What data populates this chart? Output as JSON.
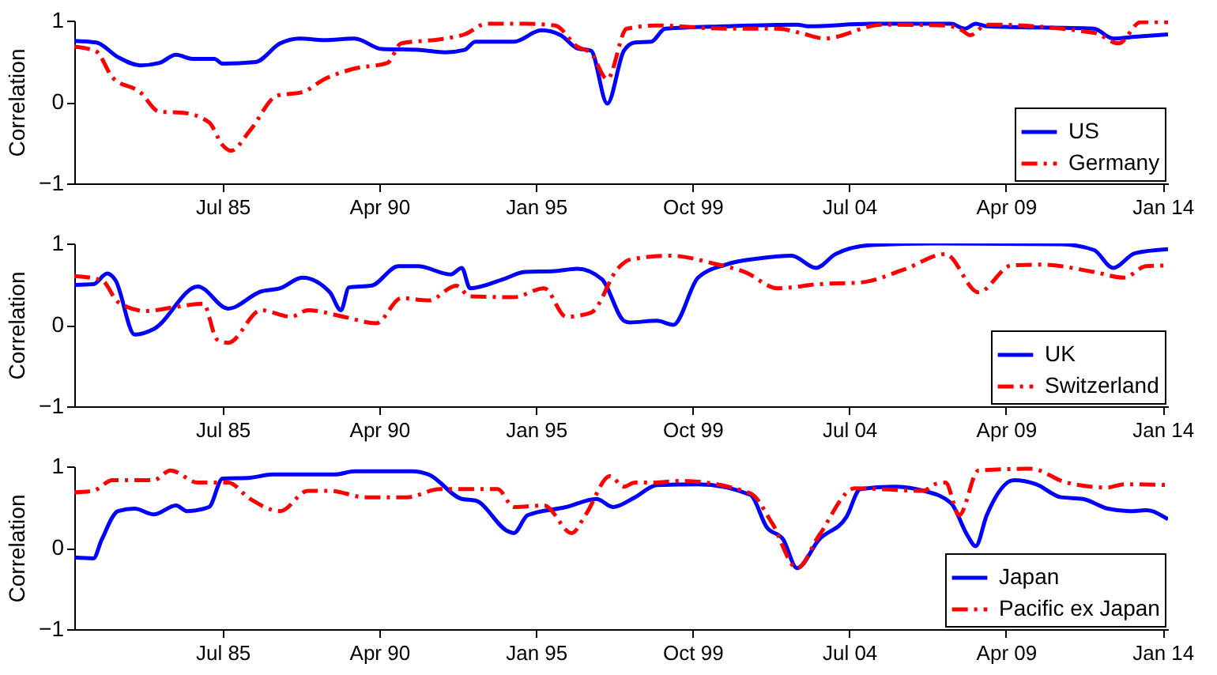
{
  "chart_data": [
    {
      "type": "line",
      "ylabel": "Correlation",
      "xlim": [
        "1981-01",
        "2014-03"
      ],
      "xticks": [
        {
          "value": "1985-07",
          "label": "Jul 85"
        },
        {
          "value": "1990-04",
          "label": "Apr 90"
        },
        {
          "value": "1995-01",
          "label": "Jan 95"
        },
        {
          "value": "1999-10",
          "label": "Oct 99"
        },
        {
          "value": "2004-07",
          "label": "Jul 04"
        },
        {
          "value": "2009-04",
          "label": "Apr 09"
        },
        {
          "value": "2014-01",
          "label": "Jan 14"
        }
      ],
      "ylim": [
        -1,
        1
      ],
      "yticks": [
        -1,
        0,
        1
      ],
      "legend": "bottom right",
      "grid": false,
      "series": [
        {
          "name": "US",
          "color": "#0000ff",
          "line_style": "solid",
          "x": [
            "1981-01",
            "1981-09",
            "1982-05",
            "1983-01",
            "1983-08",
            "1984-02",
            "1984-08",
            "1985-04",
            "1985-07",
            "1986-07",
            "1987-04",
            "1987-11",
            "1988-08",
            "1989-07",
            "1990-05",
            "1991-06",
            "1992-04",
            "1992-11",
            "1993-03",
            "1994-05",
            "1995-03",
            "1995-10",
            "1996-04",
            "1996-09",
            "1997-03",
            "1997-09",
            "1998-01",
            "1998-07",
            "1998-12",
            "2000-10",
            "2002-12",
            "2003-04",
            "2005-03",
            "2007-08",
            "2008-01",
            "2008-05",
            "2008-09",
            "2011-12",
            "2012-07",
            "2013-03",
            "2014-03"
          ],
          "values": [
            0.75,
            0.73,
            0.55,
            0.45,
            0.48,
            0.58,
            0.53,
            0.53,
            0.47,
            0.49,
            0.72,
            0.78,
            0.76,
            0.78,
            0.65,
            0.64,
            0.61,
            0.64,
            0.74,
            0.74,
            0.88,
            0.82,
            0.66,
            0.63,
            -0.02,
            0.63,
            0.73,
            0.74,
            0.9,
            0.93,
            0.95,
            0.93,
            0.96,
            0.96,
            0.9,
            0.96,
            0.93,
            0.9,
            0.78,
            0.8,
            0.83
          ]
        },
        {
          "name": "Germany",
          "color": "#ff0000",
          "line_style": "dashed",
          "x": [
            "1981-01",
            "1981-09",
            "1982-03",
            "1983-01",
            "1983-08",
            "1984-04",
            "1985-02",
            "1985-07",
            "1985-10",
            "1986-05",
            "1987-03",
            "1987-12",
            "1988-08",
            "1989-07",
            "1990-07",
            "1990-12",
            "1992-02",
            "1992-11",
            "1993-07",
            "1994-09",
            "1995-08",
            "1996-04",
            "1996-09",
            "1997-03",
            "1997-10",
            "1998-09",
            "2000-10",
            "2002-05",
            "2003-02",
            "2003-10",
            "2005-07",
            "2007-06",
            "2007-12",
            "2008-03",
            "2008-09",
            "2011-12",
            "2012-09",
            "2013-05",
            "2014-03"
          ],
          "values": [
            0.68,
            0.62,
            0.3,
            0.12,
            -0.12,
            -0.13,
            -0.25,
            -0.53,
            -0.6,
            -0.35,
            0.08,
            0.12,
            0.28,
            0.41,
            0.48,
            0.72,
            0.77,
            0.83,
            0.96,
            0.96,
            0.94,
            0.68,
            0.6,
            0.28,
            0.9,
            0.94,
            0.9,
            0.9,
            0.84,
            0.78,
            0.95,
            0.94,
            0.88,
            0.82,
            0.95,
            0.85,
            0.72,
            0.98,
            0.98
          ]
        }
      ]
    },
    {
      "type": "line",
      "ylabel": "Correlation",
      "xlim": [
        "1981-01",
        "2014-03"
      ],
      "xticks": [
        {
          "value": "1985-07",
          "label": "Jul 85"
        },
        {
          "value": "1990-04",
          "label": "Apr 90"
        },
        {
          "value": "1995-01",
          "label": "Jan 95"
        },
        {
          "value": "1999-10",
          "label": "Oct 99"
        },
        {
          "value": "2004-07",
          "label": "Jul 04"
        },
        {
          "value": "2009-04",
          "label": "Apr 09"
        },
        {
          "value": "2014-01",
          "label": "Jan 14"
        }
      ],
      "ylim": [
        -1,
        1
      ],
      "yticks": [
        -1,
        0,
        1
      ],
      "legend": "bottom right",
      "grid": false,
      "series": [
        {
          "name": "UK",
          "color": "#0000ff",
          "line_style": "solid",
          "x": [
            "1981-01",
            "1981-08",
            "1982-01",
            "1982-04",
            "1982-11",
            "1983-06",
            "1984-10",
            "1985-09",
            "1986-09",
            "1987-04",
            "1987-12",
            "1988-10",
            "1989-02",
            "1989-05",
            "1990-01",
            "1990-11",
            "1991-06",
            "1992-06",
            "1992-10",
            "1993-01",
            "1994-01",
            "1994-09",
            "1995-08",
            "1996-04",
            "1997-01",
            "1997-09",
            "1997-11",
            "1998-09",
            "1999-03",
            "1999-12",
            "2000-10",
            "2001-11",
            "2002-10",
            "2003-07",
            "2004-02",
            "2005-03",
            "2007-02",
            "2010-12",
            "2011-12",
            "2012-07",
            "2013-03",
            "2014-03"
          ],
          "values": [
            0.49,
            0.5,
            0.63,
            0.55,
            -0.12,
            -0.05,
            0.47,
            0.2,
            0.41,
            0.45,
            0.58,
            0.4,
            0.18,
            0.46,
            0.48,
            0.72,
            0.72,
            0.62,
            0.7,
            0.45,
            0.56,
            0.65,
            0.66,
            0.69,
            0.56,
            0.05,
            0.03,
            0.05,
            0.0,
            0.58,
            0.74,
            0.82,
            0.85,
            0.7,
            0.87,
            0.98,
            1.0,
            0.99,
            0.92,
            0.7,
            0.88,
            0.93
          ]
        },
        {
          "name": "Switzerland",
          "color": "#ff0000",
          "line_style": "dashed",
          "x": [
            "1981-01",
            "1981-11",
            "1982-05",
            "1983-03",
            "1984-02",
            "1984-12",
            "1985-05",
            "1985-09",
            "1986-09",
            "1987-08",
            "1988-02",
            "1989-03",
            "1990-03",
            "1990-12",
            "1991-10",
            "1992-08",
            "1993-01",
            "1994-05",
            "1995-04",
            "1995-12",
            "1996-09",
            "1997-07",
            "1997-11",
            "1999-02",
            "2000-06",
            "2001-05",
            "2002-05",
            "2003-08",
            "2004-11",
            "2006-03",
            "2007-06",
            "2008-06",
            "2009-06",
            "2010-05",
            "2011-12",
            "2012-11",
            "2013-07",
            "2014-03"
          ],
          "values": [
            0.6,
            0.55,
            0.28,
            0.17,
            0.22,
            0.26,
            -0.18,
            -0.22,
            0.18,
            0.1,
            0.18,
            0.1,
            0.02,
            0.33,
            0.3,
            0.48,
            0.35,
            0.34,
            0.45,
            0.1,
            0.15,
            0.7,
            0.8,
            0.85,
            0.75,
            0.65,
            0.45,
            0.5,
            0.52,
            0.68,
            0.87,
            0.4,
            0.73,
            0.74,
            0.65,
            0.58,
            0.72,
            0.73
          ]
        }
      ]
    },
    {
      "type": "line",
      "ylabel": "Correlation",
      "xlim": [
        "1981-01",
        "2014-03"
      ],
      "xticks": [
        {
          "value": "1985-07",
          "label": "Jul 85"
        },
        {
          "value": "1990-04",
          "label": "Apr 90"
        },
        {
          "value": "1995-01",
          "label": "Jan 95"
        },
        {
          "value": "1999-10",
          "label": "Oct 99"
        },
        {
          "value": "2004-07",
          "label": "Jul 04"
        },
        {
          "value": "2009-04",
          "label": "Apr 09"
        },
        {
          "value": "2014-01",
          "label": "Jan 14"
        }
      ],
      "ylim": [
        -1,
        1
      ],
      "yticks": [
        -1,
        0,
        1
      ],
      "legend": "bottom right",
      "grid": false,
      "series": [
        {
          "name": "Japan",
          "color": "#0000ff",
          "line_style": "solid",
          "x": [
            "1981-01",
            "1981-08",
            "1981-11",
            "1982-05",
            "1982-11",
            "1983-06",
            "1984-02",
            "1984-06",
            "1985-02",
            "1985-07",
            "1986-05",
            "1987-01",
            "1988-12",
            "1989-07",
            "1991-04",
            "1991-10",
            "1992-10",
            "1993-03",
            "1994-03",
            "1994-05",
            "1994-10",
            "1995-12",
            "1996-11",
            "1997-05",
            "1998-01",
            "1998-09",
            "1999-12",
            "2001-07",
            "2002-01",
            "2002-07",
            "2002-12",
            "2003-08",
            "2004-06",
            "2004-11",
            "2005-11",
            "2006-10",
            "2007-08",
            "2008-02",
            "2008-05",
            "2008-09",
            "2009-07",
            "2010-03",
            "2010-12",
            "2011-08",
            "2012-05",
            "2013-01",
            "2013-07",
            "2014-03"
          ],
          "values": [
            -0.12,
            -0.13,
            0.1,
            0.45,
            0.48,
            0.41,
            0.52,
            0.45,
            0.5,
            0.85,
            0.86,
            0.9,
            0.9,
            0.94,
            0.94,
            0.9,
            0.6,
            0.58,
            0.2,
            0.18,
            0.4,
            0.5,
            0.6,
            0.5,
            0.62,
            0.77,
            0.78,
            0.65,
            0.25,
            0.1,
            -0.25,
            0.1,
            0.38,
            0.72,
            0.75,
            0.7,
            0.55,
            0.15,
            0.02,
            0.4,
            0.83,
            0.78,
            0.62,
            0.6,
            0.48,
            0.45,
            0.46,
            0.35
          ]
        },
        {
          "name": "Pacific ex Japan",
          "color": "#ff0000",
          "line_style": "dashed",
          "x": [
            "1981-01",
            "1981-08",
            "1982-03",
            "1983-06",
            "1983-12",
            "1984-10",
            "1985-09",
            "1986-05",
            "1987-04",
            "1988-02",
            "1988-10",
            "1989-11",
            "1991-02",
            "1992-02",
            "1993-11",
            "1994-05",
            "1995-04",
            "1996-02",
            "1996-07",
            "1997-04",
            "1997-09",
            "1998-01",
            "1998-07",
            "1999-06",
            "2001-07",
            "2002-03",
            "2002-12",
            "2003-08",
            "2004-09",
            "2006-10",
            "2007-02",
            "2007-06",
            "2007-11",
            "2008-06",
            "2010-01",
            "2011-02",
            "2012-05",
            "2012-11",
            "2014-03"
          ],
          "values": [
            0.68,
            0.7,
            0.83,
            0.83,
            0.95,
            0.8,
            0.8,
            0.6,
            0.45,
            0.7,
            0.7,
            0.62,
            0.62,
            0.72,
            0.72,
            0.5,
            0.52,
            0.18,
            0.4,
            0.88,
            0.75,
            0.8,
            0.8,
            0.82,
            0.67,
            0.3,
            -0.25,
            0.15,
            0.73,
            0.7,
            0.78,
            0.8,
            0.4,
            0.95,
            0.97,
            0.8,
            0.74,
            0.78,
            0.77
          ]
        }
      ]
    }
  ]
}
